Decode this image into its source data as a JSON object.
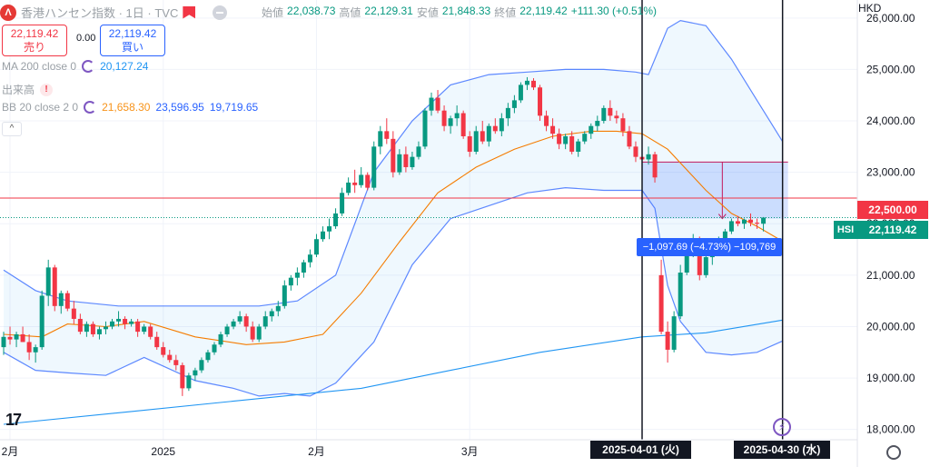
{
  "header": {
    "symbol_title": "香港ハンセン指数 · 1日 · TVC",
    "ohlc": {
      "open_label": "始値",
      "open": "22,038.73",
      "high_label": "高値",
      "high": "22,129.31",
      "low_label": "安値",
      "low": "21,848.33",
      "close_label": "終値",
      "close": "22,119.42",
      "change": "+111.30 (+0.51%)"
    }
  },
  "trade": {
    "sell_price": "22,119.42",
    "sell_label": "売り",
    "spread": "0.00",
    "buy_price": "22,119.42",
    "buy_label": "買い"
  },
  "indicators": {
    "ma_label": "MA 200 close 0",
    "ma_value": "20,127.24",
    "volume_label": "出来高",
    "bb_label": "BB 20 close 2 0",
    "bb_basis": "21,658.30",
    "bb_upper": "23,596.95",
    "bb_lower": "19,719.65"
  },
  "measure_label": "−1,097.69 (−4.73%) −109,769",
  "date_labels": {
    "start": "2025-04-01 (火)",
    "end": "2025-04-30 (水)"
  },
  "price_axis": {
    "currency": "HKD",
    "hline_label": "22,500.00",
    "symbol_tag": "HSI",
    "last_price": "22,119.42"
  },
  "logo_text": "17",
  "colors": {
    "up": "#089981",
    "down": "#f23645",
    "ma": "#2196f3",
    "bb": "#2962ff",
    "basis": "#f57c00"
  },
  "chart_data": {
    "type": "candlestick",
    "ylim": [
      17800,
      26350
    ],
    "yticks": [
      18000,
      19000,
      20000,
      21000,
      22000,
      23000,
      24000,
      25000,
      26000
    ],
    "ytick_labels": [
      "18,000.00",
      "19,000.00",
      "20,000.00",
      "21,000.00",
      "22,000.00",
      "23,000.00",
      "24,000.00",
      "25,000.00",
      "26,000.00"
    ],
    "xtick_labels": [
      {
        "label": "2月",
        "i": 1
      },
      {
        "label": "2025",
        "i": 25
      },
      {
        "label": "2月",
        "i": 49
      },
      {
        "label": "3月",
        "i": 73
      }
    ],
    "hline": 22500,
    "highlight_range": [
      23200,
      22100
    ],
    "measure_start_index": 100,
    "measure_end_index": 122,
    "ohlc": [
      [
        19600,
        19900,
        19450,
        19800
      ],
      [
        19800,
        20000,
        19650,
        19750
      ],
      [
        19750,
        19900,
        19600,
        19850
      ],
      [
        19850,
        20000,
        19700,
        19700
      ],
      [
        19700,
        19850,
        19350,
        19500
      ],
      [
        19500,
        19650,
        19300,
        19600
      ],
      [
        19600,
        20700,
        19550,
        20600
      ],
      [
        20600,
        21300,
        20400,
        21150
      ],
      [
        21150,
        21200,
        20300,
        20400
      ],
      [
        20400,
        20700,
        20250,
        20650
      ],
      [
        20650,
        20700,
        20300,
        20350
      ],
      [
        20350,
        20500,
        20050,
        20150
      ],
      [
        20150,
        20250,
        19850,
        19900
      ],
      [
        19900,
        20100,
        19800,
        20050
      ],
      [
        20050,
        20100,
        19800,
        19850
      ],
      [
        19850,
        20000,
        19750,
        19950
      ],
      [
        19950,
        20100,
        19850,
        20000
      ],
      [
        20000,
        20150,
        19950,
        20100
      ],
      [
        20100,
        20300,
        20000,
        20150
      ],
      [
        20150,
        20200,
        19950,
        20050
      ],
      [
        20050,
        20150,
        20000,
        20100
      ],
      [
        20100,
        20150,
        19800,
        19900
      ],
      [
        19900,
        20050,
        19850,
        20000
      ],
      [
        20000,
        20050,
        19750,
        19800
      ],
      [
        19800,
        19900,
        19550,
        19600
      ],
      [
        19600,
        19700,
        19400,
        19450
      ],
      [
        19450,
        19550,
        19300,
        19350
      ],
      [
        19350,
        19450,
        19150,
        19250
      ],
      [
        19250,
        19300,
        18650,
        18800
      ],
      [
        18800,
        19100,
        18750,
        19050
      ],
      [
        19050,
        19200,
        18950,
        19150
      ],
      [
        19150,
        19400,
        19100,
        19350
      ],
      [
        19350,
        19550,
        19300,
        19500
      ],
      [
        19500,
        19700,
        19450,
        19650
      ],
      [
        19650,
        19900,
        19600,
        19850
      ],
      [
        19850,
        20050,
        19800,
        20000
      ],
      [
        20000,
        20150,
        19950,
        20100
      ],
      [
        20100,
        20300,
        20050,
        20200
      ],
      [
        20200,
        20250,
        19900,
        20000
      ],
      [
        20000,
        20100,
        19700,
        19750
      ],
      [
        19750,
        20050,
        19700,
        20000
      ],
      [
        20000,
        20300,
        19950,
        20200
      ],
      [
        20200,
        20350,
        20100,
        20300
      ],
      [
        20300,
        20500,
        20200,
        20400
      ],
      [
        20400,
        20900,
        20350,
        20800
      ],
      [
        20800,
        21000,
        20700,
        20950
      ],
      [
        20950,
        21150,
        20800,
        21050
      ],
      [
        21050,
        21300,
        20950,
        21250
      ],
      [
        21250,
        21500,
        21150,
        21400
      ],
      [
        21400,
        21800,
        21350,
        21700
      ],
      [
        21700,
        21950,
        21650,
        21850
      ],
      [
        21850,
        22100,
        21700,
        21950
      ],
      [
        21950,
        22300,
        21900,
        22200
      ],
      [
        22200,
        22700,
        22150,
        22600
      ],
      [
        22600,
        22900,
        22550,
        22800
      ],
      [
        22800,
        23050,
        22600,
        22750
      ],
      [
        22750,
        23100,
        22700,
        22950
      ],
      [
        22950,
        23000,
        22650,
        22700
      ],
      [
        22700,
        23600,
        22650,
        23500
      ],
      [
        23500,
        23900,
        23350,
        23800
      ],
      [
        23800,
        24050,
        23550,
        23650
      ],
      [
        23650,
        23800,
        22900,
        23000
      ],
      [
        23000,
        23450,
        22950,
        23350
      ],
      [
        23350,
        23500,
        23000,
        23100
      ],
      [
        23100,
        23400,
        23050,
        23300
      ],
      [
        23300,
        23600,
        23250,
        23500
      ],
      [
        23500,
        24250,
        23450,
        24200
      ],
      [
        24200,
        24550,
        24100,
        24450
      ],
      [
        24450,
        24600,
        24150,
        24200
      ],
      [
        24200,
        24300,
        23800,
        23900
      ],
      [
        23900,
        24100,
        23750,
        24050
      ],
      [
        24050,
        24300,
        23900,
        24150
      ],
      [
        24150,
        24200,
        23650,
        23700
      ],
      [
        23700,
        23800,
        23300,
        23400
      ],
      [
        23400,
        23900,
        23350,
        23800
      ],
      [
        23800,
        24000,
        23550,
        23600
      ],
      [
        23600,
        23950,
        23500,
        23900
      ],
      [
        23900,
        24050,
        23750,
        23800
      ],
      [
        23800,
        24150,
        23700,
        24050
      ],
      [
        24050,
        24350,
        23900,
        24250
      ],
      [
        24250,
        24500,
        24150,
        24400
      ],
      [
        24400,
        24750,
        24350,
        24700
      ],
      [
        24700,
        24850,
        24600,
        24780
      ],
      [
        24780,
        24830,
        24600,
        24650
      ],
      [
        24650,
        24700,
        24000,
        24100
      ],
      [
        24100,
        24200,
        23800,
        23900
      ],
      [
        23900,
        24050,
        23650,
        23750
      ],
      [
        23750,
        23850,
        23450,
        23550
      ],
      [
        23550,
        23750,
        23450,
        23700
      ],
      [
        23700,
        23800,
        23350,
        23400
      ],
      [
        23400,
        23650,
        23300,
        23600
      ],
      [
        23600,
        23800,
        23550,
        23750
      ],
      [
        23750,
        23950,
        23650,
        23900
      ],
      [
        23900,
        24100,
        23800,
        24000
      ],
      [
        24000,
        24300,
        23950,
        24250
      ],
      [
        24250,
        24400,
        24000,
        24100
      ],
      [
        24100,
        24200,
        23950,
        24050
      ],
      [
        24050,
        24150,
        23700,
        23800
      ],
      [
        23800,
        23900,
        23450,
        23500
      ],
      [
        23500,
        23600,
        23200,
        23300
      ],
      [
        23300,
        23400,
        23100,
        23250
      ],
      [
        23250,
        23500,
        23150,
        23350
      ],
      [
        23350,
        23400,
        22800,
        22900
      ],
      [
        21000,
        21300,
        19850,
        19900
      ],
      [
        19900,
        20100,
        19300,
        19550
      ],
      [
        19550,
        20300,
        19500,
        20200
      ],
      [
        20200,
        21200,
        20150,
        21050
      ],
      [
        21050,
        21600,
        21000,
        21450
      ],
      [
        21450,
        21800,
        21350,
        21650
      ],
      [
        21650,
        21750,
        20900,
        21000
      ],
      [
        21000,
        21500,
        20950,
        21350
      ],
      [
        21350,
        21700,
        21200,
        21600
      ],
      [
        21600,
        21750,
        21500,
        21700
      ],
      [
        21700,
        21900,
        21650,
        21850
      ],
      [
        21850,
        22100,
        21800,
        22050
      ],
      [
        22050,
        22150,
        21950,
        22000
      ],
      [
        22000,
        22100,
        21900,
        22080
      ],
      [
        22080,
        22200,
        21950,
        22020
      ],
      [
        22020,
        22100,
        21900,
        22000
      ],
      [
        22000,
        22130,
        21850,
        22119.42
      ]
    ],
    "ma200": [
      [
        0,
        18100
      ],
      [
        20,
        18350
      ],
      [
        40,
        18600
      ],
      [
        56,
        18800
      ],
      [
        70,
        19150
      ],
      [
        84,
        19500
      ],
      [
        100,
        19800
      ],
      [
        110,
        19880
      ],
      [
        122,
        20127.24
      ]
    ],
    "bb_basis": [
      [
        0,
        19850
      ],
      [
        6,
        19800
      ],
      [
        10,
        20050
      ],
      [
        16,
        20000
      ],
      [
        22,
        20100
      ],
      [
        30,
        19800
      ],
      [
        38,
        19650
      ],
      [
        44,
        19700
      ],
      [
        50,
        19850
      ],
      [
        56,
        20650
      ],
      [
        62,
        21650
      ],
      [
        68,
        22600
      ],
      [
        74,
        23100
      ],
      [
        80,
        23450
      ],
      [
        86,
        23700
      ],
      [
        92,
        23800
      ],
      [
        96,
        23800
      ],
      [
        100,
        23750
      ],
      [
        104,
        23450
      ],
      [
        110,
        22650
      ],
      [
        114,
        22200
      ],
      [
        118,
        21950
      ],
      [
        122,
        21658.3
      ]
    ],
    "bb_upper": [
      [
        0,
        21100
      ],
      [
        5,
        20700
      ],
      [
        10,
        20500
      ],
      [
        18,
        20400
      ],
      [
        26,
        20400
      ],
      [
        34,
        20400
      ],
      [
        40,
        20400
      ],
      [
        46,
        20500
      ],
      [
        52,
        21000
      ],
      [
        58,
        23000
      ],
      [
        64,
        24000
      ],
      [
        70,
        24700
      ],
      [
        76,
        24900
      ],
      [
        82,
        24950
      ],
      [
        88,
        25000
      ],
      [
        94,
        25000
      ],
      [
        99,
        24950
      ],
      [
        101,
        24900
      ],
      [
        104,
        25800
      ],
      [
        106,
        25950
      ],
      [
        110,
        25850
      ],
      [
        114,
        25200
      ],
      [
        118,
        24400
      ],
      [
        122,
        23596.95
      ]
    ],
    "bb_lower": [
      [
        0,
        19500
      ],
      [
        5,
        19150
      ],
      [
        10,
        19100
      ],
      [
        16,
        19050
      ],
      [
        22,
        19400
      ],
      [
        30,
        18950
      ],
      [
        36,
        18800
      ],
      [
        40,
        18650
      ],
      [
        44,
        18700
      ],
      [
        48,
        18650
      ],
      [
        52,
        18900
      ],
      [
        58,
        19700
      ],
      [
        64,
        21200
      ],
      [
        70,
        22100
      ],
      [
        76,
        22350
      ],
      [
        82,
        22600
      ],
      [
        88,
        22700
      ],
      [
        94,
        22650
      ],
      [
        100,
        22650
      ],
      [
        102,
        22300
      ],
      [
        104,
        20800
      ],
      [
        106,
        20100
      ],
      [
        110,
        19500
      ],
      [
        114,
        19450
      ],
      [
        118,
        19500
      ],
      [
        122,
        19719.65
      ]
    ]
  }
}
